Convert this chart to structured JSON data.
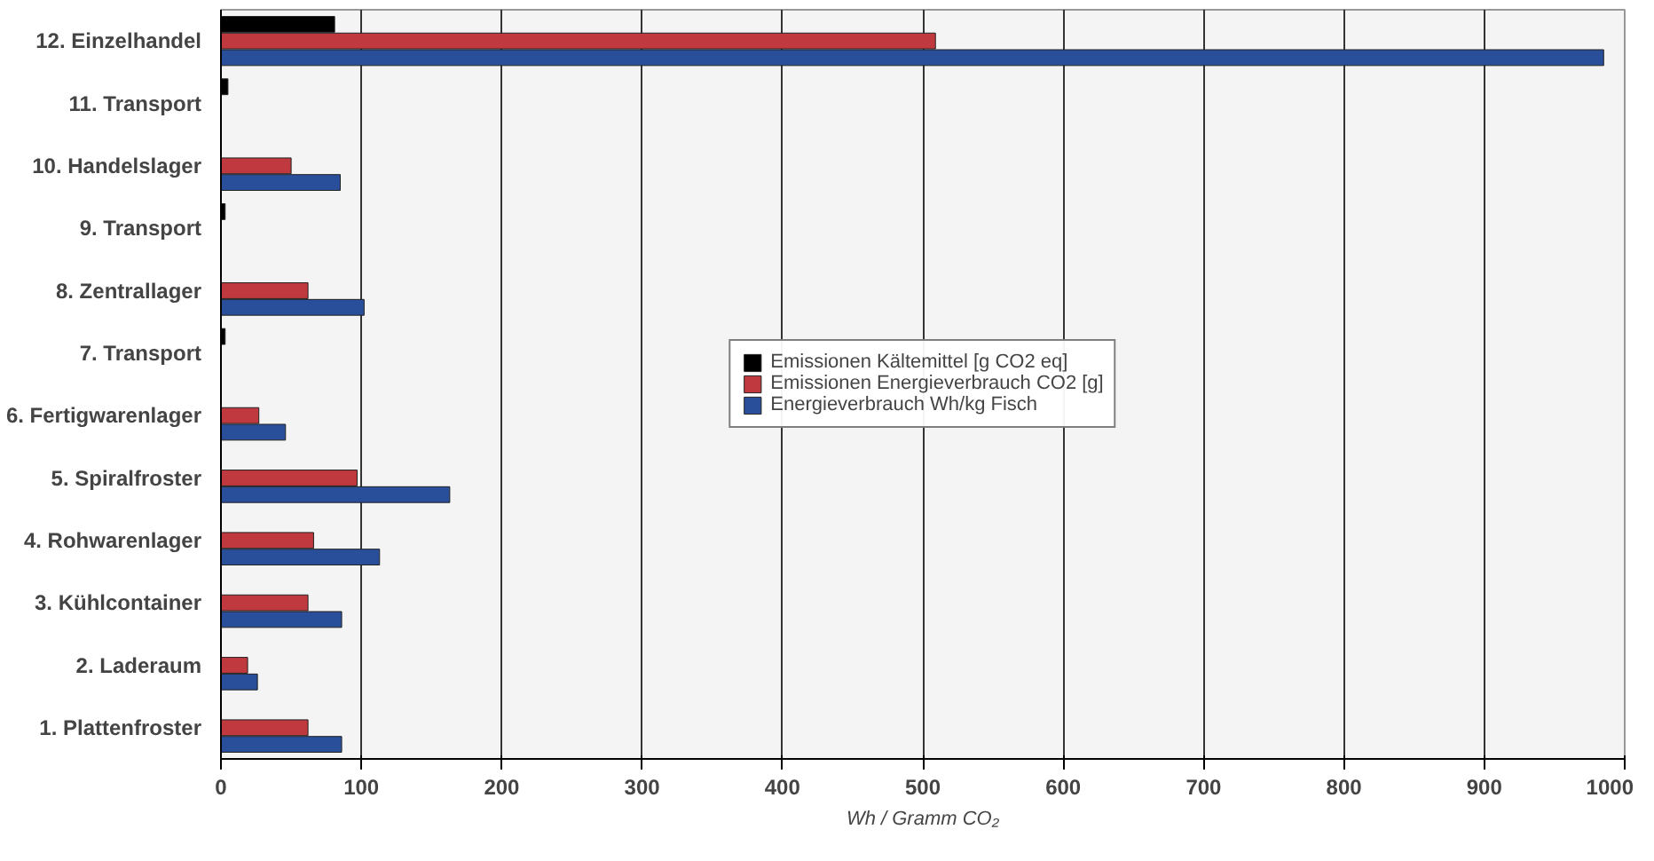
{
  "chart_data": {
    "type": "bar",
    "orientation": "horizontal",
    "categories": [
      "12. Einzelhandel",
      "11. Transport",
      "10. Handelslager",
      "9. Transport",
      "8. Zentrallager",
      "7. Transport",
      "6. Fertigwarenlager",
      "5. Spiralfroster",
      "4. Rohwarenlager",
      "3. Kühlcontainer",
      "2. Laderaum",
      "1. Plattenfroster"
    ],
    "series": [
      {
        "name": "Emissionen Kältemittel [g CO2 eq]",
        "color": "#000000",
        "values": [
          81,
          5,
          null,
          3,
          null,
          3,
          null,
          null,
          null,
          null,
          null,
          null
        ]
      },
      {
        "name": "Emissionen Energieverbrauch CO2 [g]",
        "color": "#c0393f",
        "values": [
          509,
          null,
          50,
          null,
          62,
          null,
          27,
          97,
          66,
          62,
          19,
          62
        ]
      },
      {
        "name": "Energieverbrauch Wh/kg Fisch",
        "color": "#2a4f9a",
        "values": [
          985,
          null,
          85,
          null,
          102,
          null,
          46,
          163,
          113,
          86,
          26,
          86
        ]
      }
    ],
    "xlabel": "Wh / Gramm CO₂",
    "xlim": [
      0,
      1000
    ],
    "xticks": [
      0,
      100,
      200,
      300,
      400,
      500,
      600,
      700,
      800,
      900,
      1000
    ],
    "grid": "x",
    "legend": "center"
  }
}
